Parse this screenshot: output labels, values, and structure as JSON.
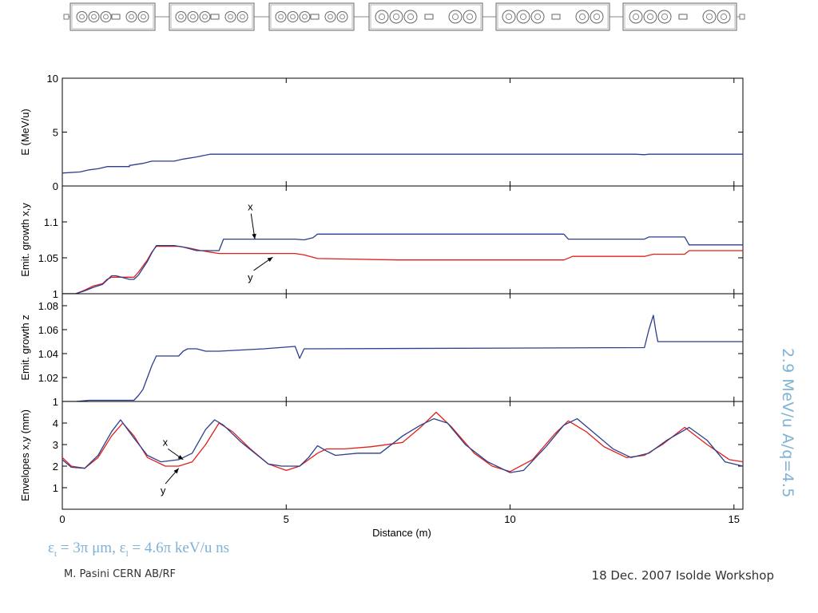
{
  "side_caption": "2.9 MeV/u A/q=4.5",
  "equation": {
    "eps_t": "ε",
    "t_sub": "t",
    "t_val": " = 3π μm, ",
    "eps_l": "ε",
    "l_sub": "l",
    "l_val": " = 4.6π keV/u ns"
  },
  "footer": {
    "author": "M. Pasini CERN AB/RF",
    "event": "18 Dec. 2007 Isolde Workshop"
  },
  "colors": {
    "x_series": "#2b3f8e",
    "y_series": "#e0201b",
    "caption": "#7fb2d4"
  },
  "lattice": {
    "modules": [
      {
        "left_cavities": 3,
        "right_cavities": 2
      },
      {
        "left_cavities": 3,
        "right_cavities": 2
      },
      {
        "left_cavities": 3,
        "right_cavities": 2
      },
      {
        "left_cavities": 3,
        "right_cavities": 2
      },
      {
        "left_cavities": 3,
        "right_cavities": 2
      },
      {
        "left_cavities": 3,
        "right_cavities": 2
      }
    ]
  },
  "chart_data": {
    "type": "line",
    "xlabel": "Distance (m)",
    "xlim": [
      0,
      15.2
    ],
    "xticks": [
      0,
      5,
      10,
      15
    ],
    "panels": [
      {
        "ylabel": "E (MeV/u)",
        "ylim": [
          0,
          10
        ],
        "yticks": [
          0,
          5,
          10
        ],
        "series": [
          {
            "color": "x",
            "x": [
              0,
              0.4,
              0.6,
              0.8,
              1.0,
              1.5,
              1.5,
              1.8,
              2.0,
              2.5,
              2.7,
              3.0,
              3.3,
              12.8,
              13.0,
              13.1,
              15.2
            ],
            "y": [
              1.2,
              1.3,
              1.5,
              1.6,
              1.8,
              1.8,
              1.9,
              2.1,
              2.3,
              2.3,
              2.5,
              2.7,
              2.95,
              2.95,
              2.9,
              2.95,
              2.95
            ]
          }
        ]
      },
      {
        "ylabel": "Emit. growth x,y",
        "ylim": [
          1,
          1.15
        ],
        "yticks": [
          1,
          1.05,
          1.1
        ],
        "annotations": [
          {
            "text": "x",
            "tx": 4.2,
            "ty": 1.116,
            "ax": 4.3,
            "ay": 1.076
          },
          {
            "text": "y",
            "tx": 4.2,
            "ty": 1.018,
            "ax": 4.7,
            "ay": 1.051
          }
        ],
        "series": [
          {
            "color": "x",
            "x": [
              0,
              0.3,
              0.5,
              0.7,
              0.9,
              1.0,
              1.1,
              1.2,
              1.5,
              1.6,
              1.7,
              1.9,
              2.0,
              2.1,
              2.5,
              2.7,
              3.0,
              3.5,
              3.6,
              5.2,
              5.4,
              5.6,
              5.7,
              8.0,
              11.2,
              11.3,
              13.0,
              13.1,
              13.9,
              14.0,
              15.2
            ],
            "y": [
              1,
              1,
              1.004,
              1.009,
              1.013,
              1.019,
              1.025,
              1.025,
              1.02,
              1.02,
              1.026,
              1.045,
              1.057,
              1.067,
              1.067,
              1.065,
              1.06,
              1.06,
              1.076,
              1.076,
              1.075,
              1.078,
              1.083,
              1.083,
              1.083,
              1.076,
              1.076,
              1.079,
              1.079,
              1.068,
              1.068
            ]
          },
          {
            "color": "y",
            "x": [
              0,
              0.3,
              0.5,
              0.7,
              0.9,
              1.0,
              1.1,
              1.3,
              1.5,
              1.6,
              1.7,
              1.9,
              2.0,
              2.1,
              2.6,
              2.8,
              3.1,
              3.3,
              3.5,
              5.2,
              5.4,
              5.7,
              7.5,
              11.2,
              11.4,
              13.0,
              13.2,
              13.9,
              14.0,
              15.2
            ],
            "y": [
              1,
              1,
              1.005,
              1.011,
              1.014,
              1.02,
              1.023,
              1.023,
              1.023,
              1.023,
              1.03,
              1.047,
              1.058,
              1.066,
              1.066,
              1.064,
              1.06,
              1.058,
              1.056,
              1.056,
              1.054,
              1.049,
              1.047,
              1.047,
              1.052,
              1.052,
              1.055,
              1.055,
              1.06,
              1.06
            ]
          }
        ]
      },
      {
        "ylabel": "Emit. growth z",
        "ylim": [
          1,
          1.09
        ],
        "yticks": [
          1,
          1.02,
          1.04,
          1.06,
          1.08
        ],
        "series": [
          {
            "color": "x",
            "x": [
              0,
              0.3,
              0.6,
              1.0,
              1.6,
              1.7,
              1.8,
              1.9,
              2.0,
              2.1,
              2.6,
              2.7,
              2.8,
              3.0,
              3.2,
              3.5,
              4.5,
              5.2,
              5.3,
              5.4,
              5.5,
              5.6,
              13.0,
              13.1,
              13.2,
              13.25,
              13.3,
              15.2
            ],
            "y": [
              1,
              1,
              1.001,
              1.001,
              1.001,
              1.005,
              1.01,
              1.02,
              1.03,
              1.038,
              1.038,
              1.042,
              1.044,
              1.044,
              1.042,
              1.042,
              1.044,
              1.046,
              1.036,
              1.044,
              1.044,
              1.044,
              1.045,
              1.06,
              1.072,
              1.06,
              1.05,
              1.05
            ]
          }
        ]
      },
      {
        "ylabel": "Envelopes x,y (mm)",
        "ylim": [
          0,
          5
        ],
        "yticks": [
          1,
          2,
          3,
          4
        ],
        "annotations": [
          {
            "text": "x",
            "tx": 2.3,
            "ty": 2.95,
            "ax": 2.7,
            "ay": 2.3
          },
          {
            "text": "y",
            "tx": 2.25,
            "ty": 0.7,
            "ax": 2.6,
            "ay": 1.9
          }
        ],
        "series": [
          {
            "color": "x",
            "x": [
              0,
              0.2,
              0.5,
              0.8,
              1.1,
              1.3,
              1.6,
              1.9,
              2.2,
              2.6,
              2.9,
              3.2,
              3.4,
              3.6,
              4.0,
              4.6,
              4.9,
              5.3,
              5.5,
              5.7,
              5.9,
              6.1,
              6.6,
              7.1,
              7.6,
              8.0,
              8.3,
              8.6,
              9.0,
              9.5,
              10.0,
              10.3,
              10.8,
              11.2,
              11.5,
              11.9,
              12.3,
              12.7,
              13.1,
              13.5,
              14.0,
              14.4,
              14.8,
              15.2
            ],
            "y": [
              2.3,
              1.95,
              1.9,
              2.5,
              3.6,
              4.15,
              3.3,
              2.5,
              2.2,
              2.3,
              2.6,
              3.7,
              4.15,
              3.9,
              3.1,
              2.1,
              2.0,
              2.0,
              2.4,
              2.95,
              2.7,
              2.5,
              2.6,
              2.6,
              3.4,
              3.9,
              4.2,
              4.0,
              3.0,
              2.2,
              1.7,
              1.8,
              2.9,
              3.9,
              4.2,
              3.5,
              2.8,
              2.4,
              2.6,
              3.2,
              3.8,
              3.2,
              2.2,
              2.0
            ]
          },
          {
            "color": "y",
            "x": [
              0,
              0.2,
              0.5,
              0.8,
              1.1,
              1.35,
              1.6,
              1.9,
              2.3,
              2.6,
              2.9,
              3.2,
              3.5,
              3.8,
              4.2,
              4.6,
              5.0,
              5.3,
              5.5,
              5.7,
              5.9,
              6.3,
              6.9,
              7.6,
              8.0,
              8.35,
              8.7,
              9.2,
              9.6,
              10.0,
              10.5,
              11.0,
              11.3,
              11.7,
              12.1,
              12.6,
              13.0,
              13.4,
              13.9,
              14.4,
              14.9,
              15.2
            ],
            "y": [
              2.4,
              2.0,
              1.9,
              2.4,
              3.4,
              4.0,
              3.4,
              2.4,
              2.0,
              2.0,
              2.2,
              3.0,
              4.0,
              3.6,
              2.8,
              2.1,
              1.8,
              2.0,
              2.3,
              2.6,
              2.8,
              2.8,
              2.9,
              3.1,
              3.8,
              4.5,
              3.8,
              2.6,
              2.0,
              1.75,
              2.3,
              3.5,
              4.1,
              3.6,
              2.9,
              2.4,
              2.5,
              3.0,
              3.8,
              3.0,
              2.3,
              2.2
            ]
          }
        ]
      }
    ]
  }
}
